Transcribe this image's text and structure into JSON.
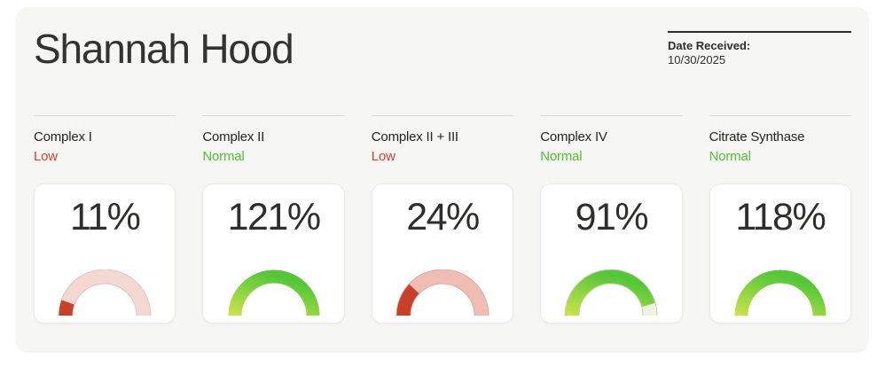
{
  "patient": {
    "name": "Shannah Hood"
  },
  "date_received": {
    "label": "Date Received:",
    "value": "10/30/2025"
  },
  "status_colors": {
    "low": "#d8402c",
    "normal": "#4fc431"
  },
  "cards": [
    {
      "label": "Complex I",
      "status": "Low",
      "status_type": "low",
      "percent": 11,
      "percent_label": "11%",
      "gauge": {
        "fill": "#c7402a",
        "track": "#f4d8d2",
        "track_border": "#e2c4be"
      }
    },
    {
      "label": "Complex II",
      "status": "Normal",
      "status_type": "normal",
      "percent": 121,
      "percent_label": "121%",
      "gauge": {
        "fill_gradient": [
          "#cbe24b",
          "#54c737"
        ],
        "track": "#edf5e1",
        "track_border": "#c6ceba"
      }
    },
    {
      "label": "Complex II + III",
      "status": "Low",
      "status_type": "low",
      "percent": 24,
      "percent_label": "24%",
      "gauge": {
        "fill": "#c7402a",
        "track": "#efbdb2",
        "track_border": "#dcaaa0"
      }
    },
    {
      "label": "Complex IV",
      "status": "Normal",
      "status_type": "normal",
      "percent": 91,
      "percent_label": "91%",
      "gauge": {
        "fill_gradient": [
          "#cbe24b",
          "#54c737"
        ],
        "track": "#edf5e1",
        "track_border": "#c6ceba"
      }
    },
    {
      "label": "Citrate Synthase",
      "status": "Normal",
      "status_type": "normal",
      "percent": 118,
      "percent_label": "118%",
      "gauge": {
        "fill_gradient": [
          "#cbe24b",
          "#54c737"
        ],
        "track": "#edf5e1",
        "track_border": "#c6ceba"
      }
    }
  ]
}
